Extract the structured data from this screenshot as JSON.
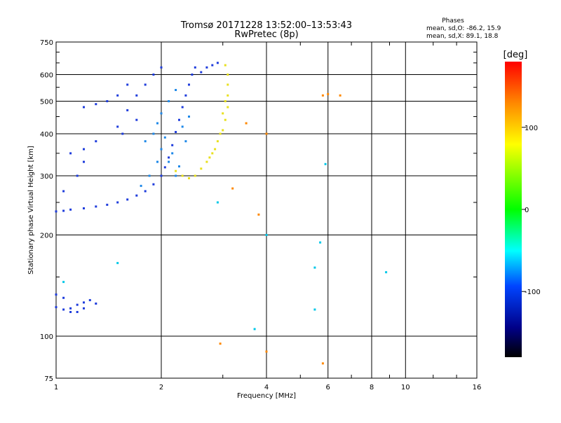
{
  "chart_data": {
    "type": "scatter",
    "title": "Tromsø 20171228 13:52:00–13:53:43",
    "subtitle": "RwPretec (8p)",
    "xlabel": "Frequency [MHz]",
    "ylabel": "Stationary phase Virtual Height [km]",
    "x_scale": "log",
    "y_scale": "log",
    "xlim": [
      1,
      16
    ],
    "ylim": [
      75,
      750
    ],
    "x_ticks": [
      "1",
      "2",
      "4",
      "6",
      "8",
      "10",
      "16"
    ],
    "y_ticks": [
      "75",
      "100",
      "200",
      "300",
      "400",
      "500",
      "600",
      "750"
    ],
    "grid": true,
    "phases_info": {
      "heading": "Phases",
      "line1": "mean, sd,O: -86.2, 15.9",
      "line2": "mean, sd,X:  89.1, 18.8"
    },
    "colorbar": {
      "label": "[deg]",
      "range": [
        -180,
        180
      ],
      "ticks": [
        "100",
        "0",
        "-100"
      ],
      "colors": [
        "#ff0000",
        "#ff8800",
        "#ffff00",
        "#00ff00",
        "#00ffff",
        "#0044ff",
        "#000088",
        "#000000"
      ]
    },
    "series": [
      {
        "color": "#1e3cdc",
        "points": [
          [
            1.0,
            235
          ],
          [
            1.05,
            236
          ],
          [
            1.1,
            238
          ],
          [
            1.2,
            240
          ],
          [
            1.3,
            243
          ],
          [
            1.4,
            246
          ],
          [
            1.5,
            250
          ],
          [
            1.6,
            255
          ],
          [
            1.7,
            262
          ],
          [
            1.8,
            270
          ],
          [
            1.9,
            283
          ],
          [
            2.0,
            300
          ],
          [
            2.05,
            318
          ],
          [
            2.1,
            340
          ],
          [
            2.15,
            370
          ],
          [
            2.2,
            405
          ],
          [
            2.25,
            440
          ],
          [
            2.3,
            480
          ],
          [
            2.35,
            520
          ],
          [
            2.4,
            560
          ],
          [
            2.45,
            600
          ],
          [
            2.5,
            630
          ],
          [
            1.05,
            270
          ],
          [
            1.15,
            300
          ],
          [
            1.2,
            330
          ],
          [
            1.1,
            350
          ],
          [
            1.2,
            360
          ],
          [
            1.3,
            380
          ],
          [
            1.5,
            420
          ],
          [
            1.6,
            470
          ],
          [
            1.7,
            520
          ],
          [
            1.8,
            560
          ],
          [
            1.9,
            600
          ],
          [
            2.0,
            630
          ],
          [
            1.4,
            500
          ],
          [
            1.5,
            520
          ],
          [
            1.3,
            490
          ],
          [
            1.2,
            480
          ],
          [
            2.6,
            610
          ],
          [
            2.7,
            630
          ],
          [
            2.8,
            640
          ],
          [
            2.9,
            650
          ],
          [
            1.6,
            560
          ],
          [
            1.55,
            400
          ],
          [
            1.7,
            440
          ]
        ]
      },
      {
        "color": "#1e88e8",
        "points": [
          [
            1.75,
            280
          ],
          [
            1.85,
            300
          ],
          [
            1.95,
            330
          ],
          [
            2.0,
            360
          ],
          [
            2.05,
            390
          ],
          [
            2.1,
            330
          ],
          [
            2.15,
            350
          ],
          [
            2.2,
            300
          ],
          [
            2.25,
            320
          ],
          [
            1.9,
            400
          ],
          [
            1.95,
            430
          ],
          [
            2.0,
            460
          ],
          [
            2.1,
            500
          ],
          [
            2.2,
            540
          ],
          [
            2.3,
            420
          ],
          [
            2.35,
            380
          ],
          [
            2.4,
            450
          ],
          [
            1.8,
            380
          ]
        ]
      },
      {
        "color": "#e8e01e",
        "points": [
          [
            2.2,
            310
          ],
          [
            2.3,
            300
          ],
          [
            2.4,
            295
          ],
          [
            2.5,
            300
          ],
          [
            2.6,
            315
          ],
          [
            2.7,
            330
          ],
          [
            2.8,
            350
          ],
          [
            2.9,
            380
          ],
          [
            3.0,
            410
          ],
          [
            3.05,
            440
          ],
          [
            3.1,
            480
          ],
          [
            3.1,
            520
          ],
          [
            3.1,
            560
          ],
          [
            3.1,
            600
          ],
          [
            3.05,
            640
          ],
          [
            2.95,
            400
          ],
          [
            3.0,
            460
          ],
          [
            3.05,
            500
          ],
          [
            2.85,
            360
          ],
          [
            2.75,
            340
          ]
        ]
      },
      {
        "color": "#1e3cdc",
        "points": [
          [
            1.0,
            122
          ],
          [
            1.05,
            120
          ],
          [
            1.1,
            121
          ],
          [
            1.15,
            124
          ],
          [
            1.2,
            126
          ],
          [
            1.25,
            128
          ],
          [
            1.3,
            125
          ],
          [
            1.0,
            133
          ],
          [
            1.05,
            130
          ],
          [
            1.1,
            118
          ],
          [
            1.15,
            118
          ],
          [
            1.2,
            121
          ]
        ]
      },
      {
        "color": "#ff8800",
        "points": [
          [
            5.8,
            520
          ],
          [
            6.0,
            525
          ],
          [
            6.5,
            520
          ],
          [
            3.5,
            430
          ],
          [
            4.0,
            400
          ],
          [
            3.8,
            230
          ],
          [
            3.2,
            275
          ],
          [
            2.95,
            95
          ],
          [
            4.0,
            90
          ],
          [
            5.8,
            83
          ]
        ]
      },
      {
        "color": "#00c8e8",
        "points": [
          [
            1.05,
            145
          ],
          [
            2.9,
            250
          ],
          [
            5.7,
            190
          ],
          [
            5.9,
            325
          ],
          [
            4.0,
            200
          ],
          [
            3.7,
            105
          ],
          [
            5.5,
            160
          ],
          [
            5.5,
            120
          ],
          [
            8.8,
            155
          ],
          [
            1.5,
            165
          ]
        ]
      }
    ]
  }
}
